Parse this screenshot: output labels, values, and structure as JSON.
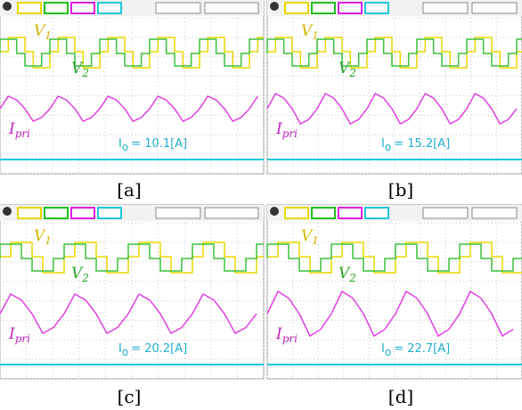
{
  "panels": [
    {
      "caption": "[a]",
      "v1": {
        "main": "V",
        "sub": "1"
      },
      "v2": {
        "main": "V",
        "sub": "2"
      },
      "ipri": {
        "main": "I",
        "sub": "pri"
      },
      "io": {
        "main": "I",
        "sub": "o",
        "value": "= 10.1[A]"
      }
    },
    {
      "caption": "[b]",
      "v1": {
        "main": "V",
        "sub": "1"
      },
      "v2": {
        "main": "V",
        "sub": "2"
      },
      "ipri": {
        "main": "I",
        "sub": "pri"
      },
      "io": {
        "main": "I",
        "sub": "o",
        "value": "= 15.2[A]"
      }
    },
    {
      "caption": "[c]",
      "v1": {
        "main": "V",
        "sub": "1"
      },
      "v2": {
        "main": "V",
        "sub": "2"
      },
      "ipri": {
        "main": "I",
        "sub": "pri"
      },
      "io": {
        "main": "I",
        "sub": "o",
        "value": "= 20.2[A]"
      }
    },
    {
      "caption": "[d]",
      "v1": {
        "main": "V",
        "sub": "1"
      },
      "v2": {
        "main": "V",
        "sub": "2"
      },
      "ipri": {
        "main": "I",
        "sub": "pri"
      },
      "io": {
        "main": "I",
        "sub": "o",
        "value": "= 22.7[A]"
      }
    }
  ]
}
